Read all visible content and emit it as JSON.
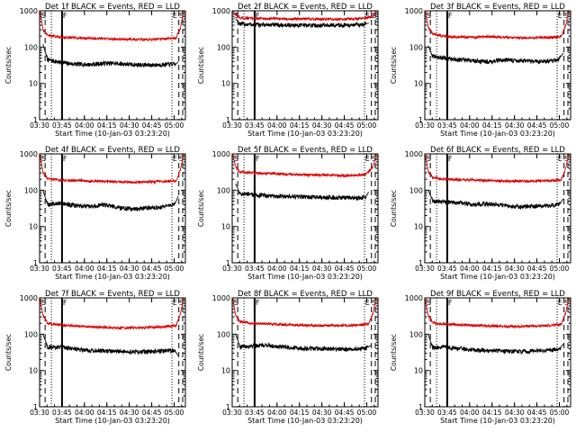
{
  "colors": {
    "events": "#000000",
    "lld": "#dd0000",
    "axes": "#000000",
    "background": "#ffffff"
  },
  "xlabel": "Start Time (10-Jan-03 03:23:20)",
  "ylabel": "Counts/sec",
  "xticks": [
    "03:30",
    "03:45",
    "04:00",
    "04:15",
    "04:30",
    "04:45",
    "05:00"
  ],
  "yticks": [
    "1",
    "10",
    "100",
    "1000"
  ],
  "markers": {
    "start": "S",
    "entry": "E",
    "flag": "F"
  },
  "chart_data": [
    {
      "type": "line",
      "title": "Det 1f BLACK = Events, RED = LLD",
      "xlim_min": [
        6.7,
        104.2
      ],
      "ylim": [
        1,
        1000
      ],
      "log_y": true,
      "x_unit": "minutes after 03:23:20",
      "dashed_lines_min": [
        10.4,
        99.8,
        102.4
      ],
      "dotted_lines_min": [
        14.6,
        95.2
      ],
      "solid_lines_min": [
        21.7
      ],
      "series": [
        {
          "name": "Events",
          "x_min": [
            9,
            12,
            20,
            30,
            40,
            50,
            60,
            70,
            80,
            90,
            98,
            99.5
          ],
          "values": [
            120,
            45,
            38,
            34,
            33,
            36,
            35,
            33,
            32,
            33,
            34,
            40
          ]
        },
        {
          "name": "LLD",
          "x_min": [
            7,
            9,
            12,
            20,
            30,
            40,
            50,
            60,
            70,
            80,
            90,
            98,
            101,
            103
          ],
          "values": [
            1000,
            300,
            210,
            190,
            180,
            175,
            170,
            165,
            165,
            160,
            170,
            175,
            350,
            1000
          ]
        }
      ]
    },
    {
      "type": "line",
      "title": "Det 2f BLACK = Events, RED = LLD",
      "xlim_min": [
        6.7,
        104.2
      ],
      "ylim": [
        1,
        1000
      ],
      "log_y": true,
      "x_unit": "minutes after 03:23:20",
      "dashed_lines_min": [
        10.4,
        99.8,
        102.4
      ],
      "dotted_lines_min": [
        14.6,
        95.2
      ],
      "solid_lines_min": [
        21.7
      ],
      "series": [
        {
          "name": "Events",
          "x_min": [
            9,
            12,
            20,
            30,
            40,
            50,
            60,
            70,
            80,
            90,
            95,
            98
          ],
          "values": [
            600,
            430,
            420,
            410,
            405,
            400,
            400,
            400,
            405,
            410,
            420,
            460
          ]
        },
        {
          "name": "LLD",
          "x_min": [
            7,
            9,
            12,
            20,
            30,
            40,
            50,
            60,
            70,
            80,
            90,
            96,
            101,
            103
          ],
          "values": [
            1000,
            800,
            640,
            620,
            610,
            600,
            595,
            590,
            590,
            595,
            600,
            620,
            700,
            1000
          ]
        }
      ]
    },
    {
      "type": "line",
      "title": "Det 3f BLACK = Events, RED = LLD",
      "xlim_min": [
        6.7,
        104.2
      ],
      "ylim": [
        1,
        1000
      ],
      "log_y": true,
      "x_unit": "minutes after 03:23:20",
      "dashed_lines_min": [
        10.4,
        99.8,
        102.4
      ],
      "dotted_lines_min": [
        14.6,
        95.2
      ],
      "solid_lines_min": [
        21.7
      ],
      "series": [
        {
          "name": "Events",
          "x_min": [
            9,
            12,
            20,
            30,
            40,
            50,
            60,
            70,
            80,
            90,
            96,
            99.5
          ],
          "values": [
            110,
            55,
            50,
            45,
            42,
            40,
            45,
            42,
            40,
            42,
            45,
            70
          ]
        },
        {
          "name": "LLD",
          "x_min": [
            7,
            9,
            12,
            20,
            30,
            40,
            50,
            60,
            70,
            80,
            90,
            98,
            101,
            103
          ],
          "values": [
            1000,
            350,
            230,
            200,
            190,
            185,
            195,
            185,
            180,
            180,
            185,
            190,
            400,
            1000
          ]
        }
      ]
    },
    {
      "type": "line",
      "title": "Det 4f BLACK = Events, RED = LLD",
      "xlim_min": [
        6.7,
        104.2
      ],
      "ylim": [
        1,
        1000
      ],
      "log_y": true,
      "x_unit": "minutes after 03:23:20",
      "dashed_lines_min": [
        10.4,
        99.8,
        102.4
      ],
      "dotted_lines_min": [
        14.6,
        95.2
      ],
      "solid_lines_min": [
        21.7
      ],
      "series": [
        {
          "name": "Events",
          "x_min": [
            9,
            12,
            20,
            30,
            40,
            50,
            60,
            70,
            80,
            90,
            97,
            99.5
          ],
          "values": [
            100,
            40,
            45,
            38,
            35,
            40,
            33,
            30,
            33,
            35,
            40,
            70
          ]
        },
        {
          "name": "LLD",
          "x_min": [
            7,
            9,
            12,
            20,
            30,
            40,
            50,
            60,
            70,
            80,
            90,
            98,
            101,
            103
          ],
          "values": [
            1000,
            300,
            210,
            190,
            185,
            180,
            175,
            170,
            165,
            170,
            175,
            180,
            380,
            1000
          ]
        }
      ]
    },
    {
      "type": "line",
      "title": "Det 5f BLACK = Events, RED = LLD",
      "xlim_min": [
        6.7,
        104.2
      ],
      "ylim": [
        1,
        1000
      ],
      "log_y": true,
      "x_unit": "minutes after 03:23:20",
      "dashed_lines_min": [
        10.4,
        99.8,
        102.4
      ],
      "dotted_lines_min": [
        14.6,
        95.2
      ],
      "solid_lines_min": [
        21.7
      ],
      "series": [
        {
          "name": "Events",
          "x_min": [
            9,
            12,
            20,
            30,
            40,
            50,
            60,
            70,
            80,
            90,
            96,
            98
          ],
          "values": [
            150,
            80,
            75,
            70,
            68,
            66,
            65,
            63,
            62,
            62,
            65,
            90
          ]
        },
        {
          "name": "LLD",
          "x_min": [
            7,
            9,
            12,
            20,
            30,
            40,
            50,
            60,
            70,
            80,
            90,
            96,
            101,
            103
          ],
          "values": [
            1000,
            450,
            320,
            300,
            290,
            280,
            270,
            265,
            260,
            255,
            260,
            270,
            450,
            1000
          ]
        }
      ]
    },
    {
      "type": "line",
      "title": "Det 6f BLACK = Events, RED = LLD",
      "xlim_min": [
        6.7,
        104.2
      ],
      "ylim": [
        1,
        1000
      ],
      "log_y": true,
      "x_unit": "minutes after 03:23:20",
      "dashed_lines_min": [
        10.4,
        99.8,
        102.4
      ],
      "dotted_lines_min": [
        14.6,
        95.2
      ],
      "solid_lines_min": [
        21.7
      ],
      "series": [
        {
          "name": "Events",
          "x_min": [
            9,
            12,
            20,
            30,
            40,
            50,
            60,
            70,
            80,
            90,
            97,
            99.5
          ],
          "values": [
            100,
            50,
            48,
            45,
            40,
            42,
            38,
            35,
            36,
            38,
            42,
            60
          ]
        },
        {
          "name": "LLD",
          "x_min": [
            7,
            9,
            12,
            20,
            30,
            40,
            50,
            60,
            70,
            80,
            90,
            98,
            101,
            103
          ],
          "values": [
            1000,
            330,
            220,
            200,
            195,
            190,
            185,
            180,
            178,
            180,
            185,
            190,
            400,
            1000
          ]
        }
      ]
    },
    {
      "type": "line",
      "title": "Det 7f BLACK = Events, RED = LLD",
      "xlim_min": [
        6.7,
        104.2
      ],
      "ylim": [
        1,
        1000
      ],
      "log_y": true,
      "x_unit": "minutes after 03:23:20",
      "dashed_lines_min": [
        10.4,
        99.8,
        102.4
      ],
      "dotted_lines_min": [
        14.6,
        95.2
      ],
      "solid_lines_min": [
        21.7
      ],
      "series": [
        {
          "name": "Events",
          "x_min": [
            9,
            12,
            20,
            30,
            40,
            50,
            60,
            70,
            80,
            90,
            97,
            99.5
          ],
          "values": [
            100,
            45,
            44,
            40,
            36,
            35,
            33,
            32,
            33,
            35,
            36,
            25
          ]
        },
        {
          "name": "LLD",
          "x_min": [
            7,
            9,
            12,
            20,
            30,
            40,
            50,
            60,
            70,
            80,
            90,
            98,
            101,
            103
          ],
          "values": [
            1000,
            320,
            200,
            180,
            170,
            160,
            155,
            150,
            150,
            155,
            160,
            170,
            380,
            1000
          ]
        }
      ]
    },
    {
      "type": "line",
      "title": "Det 8f BLACK = Events, RED = LLD",
      "xlim_min": [
        6.7,
        104.2
      ],
      "ylim": [
        1,
        1000
      ],
      "log_y": true,
      "x_unit": "minutes after 03:23:20",
      "dashed_lines_min": [
        10.4,
        99.8,
        102.4
      ],
      "dotted_lines_min": [
        14.6,
        95.2
      ],
      "solid_lines_min": [
        21.7
      ],
      "series": [
        {
          "name": "Events",
          "x_min": [
            9,
            12,
            20,
            30,
            40,
            50,
            60,
            70,
            80,
            90,
            97,
            99.5
          ],
          "values": [
            100,
            45,
            48,
            50,
            45,
            42,
            40,
            40,
            38,
            40,
            42,
            50
          ]
        },
        {
          "name": "LLD",
          "x_min": [
            7,
            9,
            12,
            20,
            30,
            40,
            50,
            60,
            70,
            80,
            90,
            98,
            101,
            103
          ],
          "values": [
            1000,
            330,
            220,
            200,
            195,
            185,
            180,
            175,
            170,
            175,
            180,
            190,
            400,
            1000
          ]
        }
      ]
    },
    {
      "type": "line",
      "title": "Det 9f BLACK = Events, RED = LLD",
      "xlim_min": [
        6.7,
        104.2
      ],
      "ylim": [
        1,
        1000
      ],
      "log_y": true,
      "x_unit": "minutes after 03:23:20",
      "dashed_lines_min": [
        10.4,
        99.8,
        102.4
      ],
      "dotted_lines_min": [
        14.6,
        95.2
      ],
      "solid_lines_min": [
        21.7
      ],
      "series": [
        {
          "name": "Events",
          "x_min": [
            9,
            12,
            20,
            30,
            40,
            50,
            60,
            70,
            80,
            90,
            97,
            99.5
          ],
          "values": [
            100,
            42,
            45,
            40,
            37,
            35,
            34,
            33,
            35,
            36,
            40,
            55
          ]
        },
        {
          "name": "LLD",
          "x_min": [
            7,
            9,
            12,
            20,
            30,
            40,
            50,
            60,
            70,
            80,
            90,
            98,
            101,
            103
          ],
          "values": [
            1000,
            320,
            210,
            190,
            180,
            175,
            170,
            165,
            165,
            170,
            175,
            185,
            390,
            1000
          ]
        }
      ]
    }
  ]
}
